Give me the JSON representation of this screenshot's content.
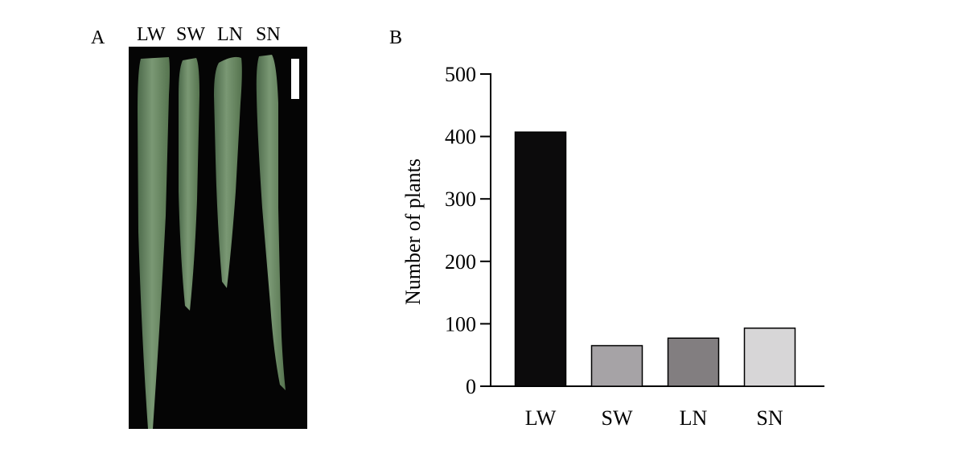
{
  "panels": {
    "a_label": "A",
    "b_label": "B"
  },
  "photo": {
    "leaf_labels": [
      "LW",
      "SW",
      "LN",
      "SN"
    ],
    "background_color": "#050505",
    "leaf_color": "#6f8d6a",
    "scale_bar_color": "#ffffff"
  },
  "chart_data": {
    "type": "bar",
    "categories": [
      "LW",
      "SW",
      "LN",
      "SN"
    ],
    "values": [
      407,
      65,
      77,
      93
    ],
    "ylabel": "Number of plants",
    "xlabel": "",
    "ylim": [
      0,
      500
    ],
    "yticks": [
      0,
      100,
      200,
      300,
      400,
      500
    ],
    "colors": [
      "#0c0b0c",
      "#a6a3a6",
      "#827e80",
      "#d7d6d7"
    ],
    "grid": false,
    "legend": "none"
  }
}
